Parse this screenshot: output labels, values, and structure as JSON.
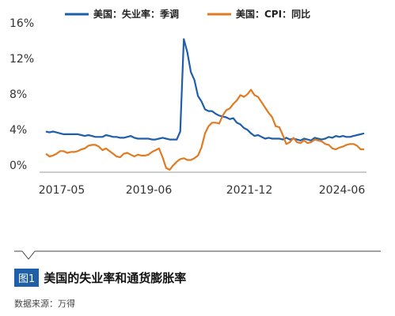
{
  "chart_data": {
    "type": "line",
    "x_ticks": [
      "2017-05",
      "2019-06",
      "2021-12",
      "2024-06"
    ],
    "y_ticks": [
      "0%",
      "4%",
      "8%",
      "12%",
      "16%"
    ],
    "ylim": [
      0,
      16
    ],
    "grid": false,
    "legend_position": "top",
    "series": [
      {
        "name": "美国：失业率：季调",
        "color": "#1f5ea8",
        "values": [
          4.4,
          4.3,
          4.4,
          4.3,
          4.2,
          4.1,
          4.1,
          4.1,
          4.1,
          4.1,
          4.0,
          3.9,
          4.0,
          3.9,
          3.8,
          3.8,
          3.8,
          4.0,
          3.9,
          3.8,
          3.8,
          3.7,
          3.7,
          3.8,
          3.9,
          3.7,
          3.6,
          3.6,
          3.6,
          3.6,
          3.5,
          3.5,
          3.6,
          3.7,
          3.6,
          3.5,
          3.5,
          3.5,
          4.4,
          14.8,
          13.3,
          11.1,
          10.2,
          8.4,
          7.8,
          6.9,
          6.7,
          6.7,
          6.4,
          6.2,
          6.1,
          6.0,
          5.8,
          5.9,
          5.4,
          5.2,
          4.8,
          4.6,
          4.2,
          3.9,
          4.0,
          3.8,
          3.6,
          3.7,
          3.6,
          3.6,
          3.6,
          3.5,
          3.7,
          3.5,
          3.6,
          3.5,
          3.4,
          3.6,
          3.5,
          3.4,
          3.7,
          3.6,
          3.5,
          3.6,
          3.8,
          3.7,
          3.9,
          3.8,
          3.9,
          3.8,
          3.8,
          3.9,
          4.0,
          4.1,
          4.2
        ]
      },
      {
        "name": "美国：CPI：同比",
        "color": "#e07b24",
        "values": [
          1.9,
          1.6,
          1.7,
          1.9,
          2.2,
          2.2,
          2.0,
          2.1,
          2.1,
          2.2,
          2.4,
          2.5,
          2.8,
          2.9,
          2.9,
          2.7,
          2.3,
          2.5,
          2.2,
          1.9,
          1.6,
          1.5,
          1.9,
          2.0,
          1.8,
          1.6,
          1.8,
          1.7,
          1.7,
          1.8,
          2.1,
          2.3,
          2.5,
          1.5,
          0.3,
          0.1,
          0.6,
          1.0,
          1.3,
          1.4,
          1.2,
          1.2,
          1.4,
          1.7,
          2.6,
          4.2,
          5.0,
          5.4,
          5.4,
          5.3,
          6.2,
          6.8,
          7.0,
          7.5,
          7.9,
          8.5,
          8.3,
          8.6,
          9.1,
          8.5,
          8.3,
          7.7,
          7.1,
          6.5,
          6.0,
          5.0,
          4.9,
          4.0,
          3.0,
          3.2,
          3.7,
          3.2,
          3.1,
          3.4,
          3.1,
          3.2,
          3.5,
          3.4,
          3.3,
          3.0,
          2.9,
          2.5,
          2.4,
          2.6,
          2.7,
          2.9,
          3.0,
          3.0,
          2.8,
          2.4,
          2.4
        ]
      }
    ]
  },
  "caption": {
    "figure_label": "图1",
    "title": "美国的失业率和通货膨胀率"
  },
  "source": "数据来源：万得"
}
